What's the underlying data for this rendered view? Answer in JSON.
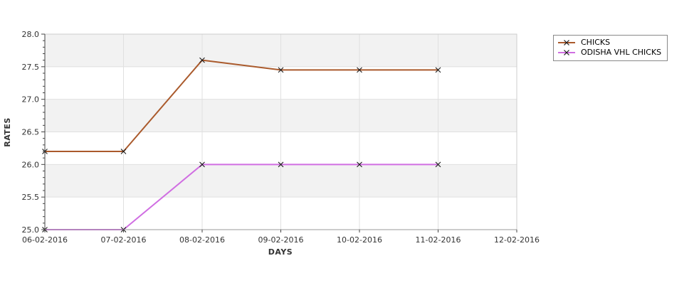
{
  "chart_data": {
    "type": "line",
    "title": "",
    "xlabel": "DAYS",
    "ylabel": "RATES",
    "x_tick_labels": [
      "06-02-2016",
      "07-02-2016",
      "08-02-2016",
      "09-02-2016",
      "10-02-2016",
      "11-02-2016",
      "12-02-2016"
    ],
    "categories": [
      "06-02-2016",
      "07-02-2016",
      "08-02-2016",
      "09-02-2016",
      "10-02-2016",
      "11-02-2016"
    ],
    "series": [
      {
        "name": "CHICKS",
        "color": "#aa5a2c",
        "values": [
          26.2,
          26.2,
          27.6,
          27.45,
          27.45,
          27.45
        ]
      },
      {
        "name": "ODISHA VHL CHICKS",
        "color": "#d06ee2",
        "values": [
          25.0,
          25.0,
          26.0,
          26.0,
          26.0,
          26.0
        ]
      }
    ],
    "ylim": [
      25.0,
      28.0
    ],
    "y_tick_step": 0.5,
    "y_minor_tick_step": 0.1,
    "marker": "x",
    "marker_color": "#1a1a1a",
    "grid": true,
    "legend_position": "top-right",
    "colors": {
      "band": "#f2f2f2",
      "gridline": "#e0e0e0",
      "plot_border": "#cccccc",
      "y_axis": "#444444",
      "x_axis": "#999999",
      "tick": "#444444",
      "text": "#333333"
    }
  }
}
